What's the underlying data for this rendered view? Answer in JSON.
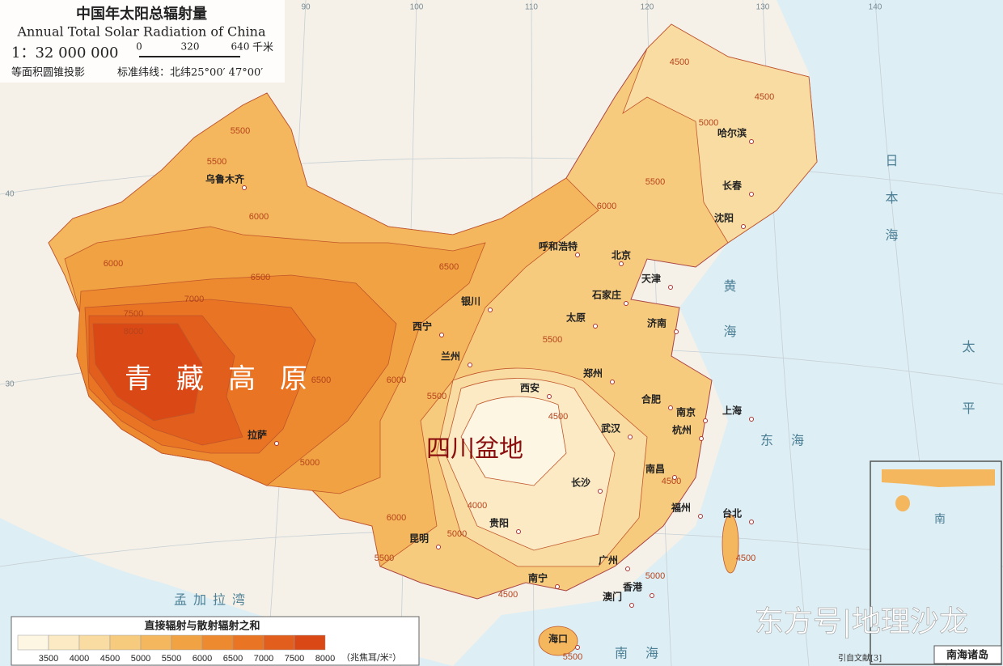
{
  "header": {
    "title": "中国年太阳总辐射量",
    "subtitle": "Annual Total Solar Radiation of China",
    "scale": "1：32 000 000",
    "scale_bar": [
      "0",
      "320",
      "640"
    ],
    "scale_unit": "千米",
    "projection": "等面积圆锥投影",
    "standard_parallels": "标准纬线：北纬25°00′ 47°00′"
  },
  "graticule_labels": [
    "90",
    "100",
    "110",
    "120",
    "130",
    "140",
    "40",
    "30"
  ],
  "regions": [
    "青藏高原",
    "四川盆地"
  ],
  "cities": [
    "乌鲁木齐",
    "哈尔滨",
    "长春",
    "沈阳",
    "呼和浩特",
    "北京",
    "天津",
    "石家庄",
    "太原",
    "济南",
    "银川",
    "西宁",
    "兰州",
    "西安",
    "郑州",
    "合肥",
    "南京",
    "上海",
    "杭州",
    "武汉",
    "长沙",
    "南昌",
    "福州",
    "台北",
    "贵阳",
    "昆明",
    "南宁",
    "广州",
    "香港",
    "澳门",
    "海口",
    "拉萨"
  ],
  "contours": [
    5500,
    5500,
    6000,
    6000,
    6500,
    7000,
    7500,
    8000,
    6500,
    6000,
    5500,
    5000,
    6000,
    5500,
    5000,
    4000,
    4500,
    4500,
    4500,
    5000,
    5500,
    6000,
    6500,
    5500,
    4500,
    4500,
    5000,
    4500,
    5500
  ],
  "seas": [
    "日本海",
    "黄海",
    "东海",
    "太平洋",
    "南海",
    "孟加拉湾"
  ],
  "legend": {
    "title": "直接辐射与散射辐射之和",
    "levels": [
      {
        "label": "3500",
        "color": "#fdf6e3"
      },
      {
        "label": "4000",
        "color": "#fbeac4"
      },
      {
        "label": "4500",
        "color": "#f9dca2"
      },
      {
        "label": "5000",
        "color": "#f7cb7e"
      },
      {
        "label": "5500",
        "color": "#f4b75d"
      },
      {
        "label": "6000",
        "color": "#f1a242"
      },
      {
        "label": "6500",
        "color": "#ed8a2f"
      },
      {
        "label": "7000",
        "color": "#e97424"
      },
      {
        "label": "7500",
        "color": "#e25e1c"
      },
      {
        "label": "8000",
        "color": "#da4915"
      }
    ],
    "unit": "（兆焦耳/米²）"
  },
  "inset": {
    "title": "南海诸岛",
    "sea": "南"
  },
  "source": "引自文献[3]",
  "watermark": "东方号|地理沙龙"
}
